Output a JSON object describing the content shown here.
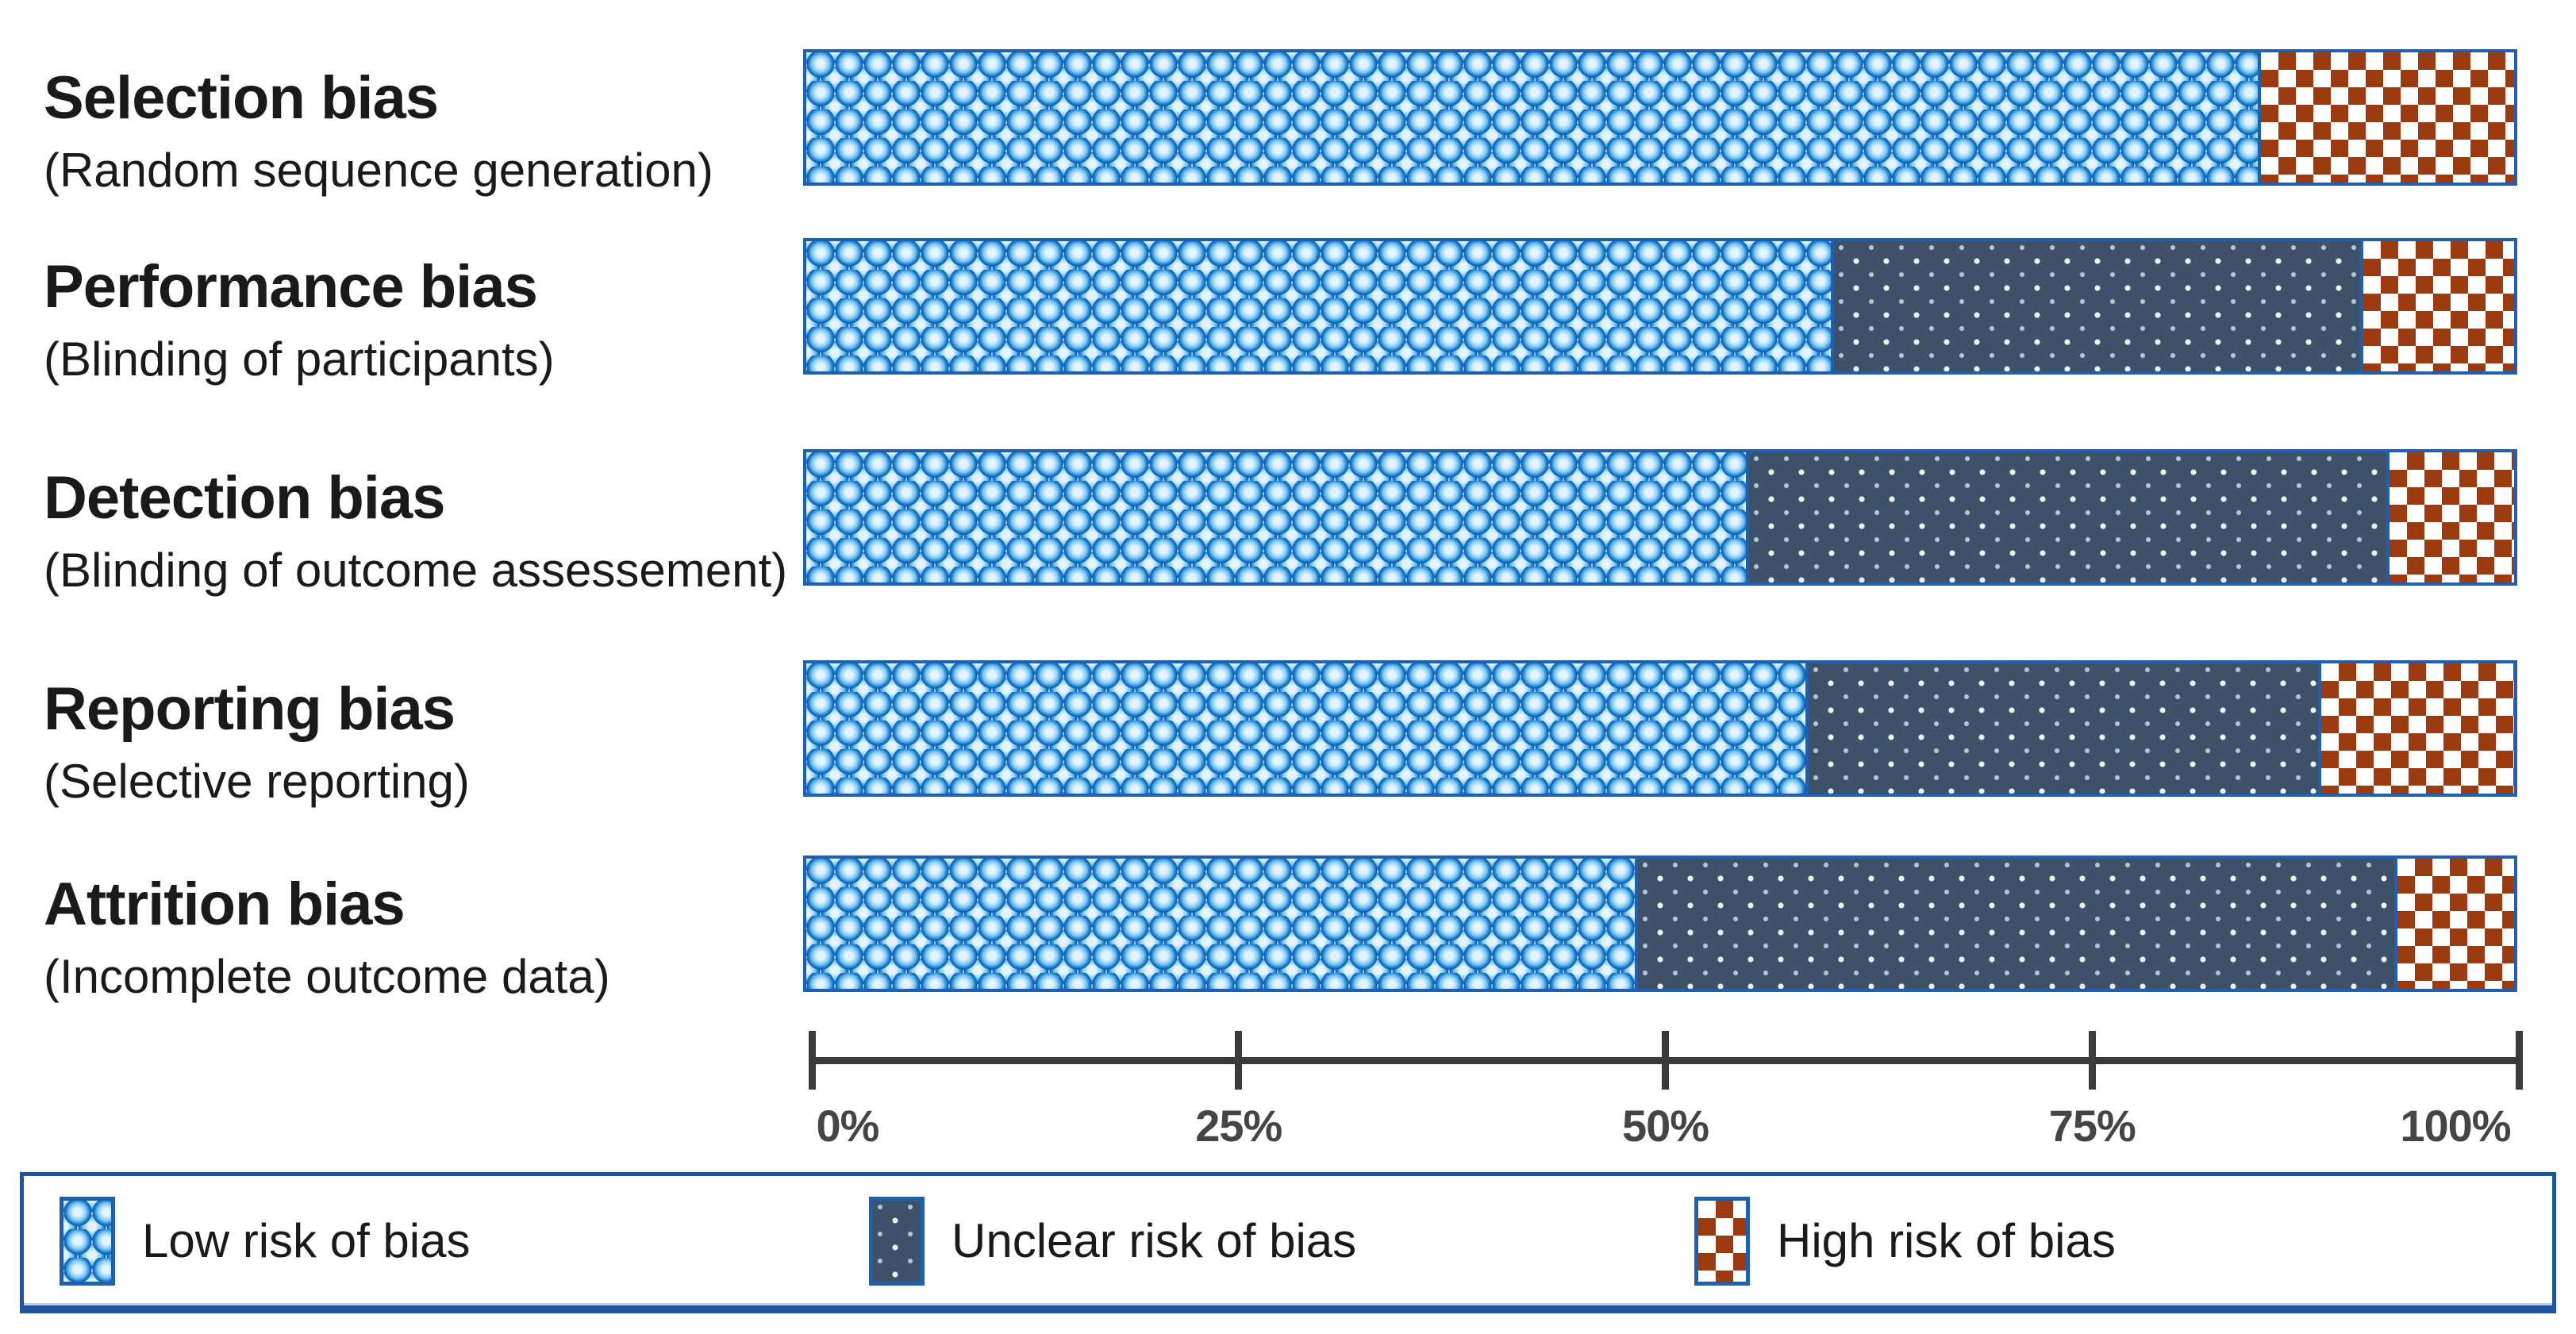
{
  "chart_data": {
    "type": "bar",
    "orientation": "horizontal",
    "stacked": true,
    "title": "",
    "categories": [
      {
        "title": "Selection bias",
        "subtitle": "(Random sequence generation)"
      },
      {
        "title": "Performance bias",
        "subtitle": "(Blinding of participants)"
      },
      {
        "title": "Detection bias",
        "subtitle": "(Blinding of outcome assessement)"
      },
      {
        "title": "Reporting bias",
        "subtitle": "(Selective reporting)"
      },
      {
        "title": "Attrition bias",
        "subtitle": "(Incomplete outcome data)"
      }
    ],
    "series": [
      {
        "name": "Low risk of bias",
        "key": "low",
        "values": [
          85,
          60,
          55,
          58.5,
          48.5
        ]
      },
      {
        "name": "Unclear risk of bias",
        "key": "unclear",
        "values": [
          0,
          31,
          37.5,
          30,
          44.5
        ]
      },
      {
        "name": "High risk of bias",
        "key": "high",
        "values": [
          15,
          9,
          7.5,
          11.5,
          7
        ]
      }
    ],
    "x_axis": {
      "min": 0,
      "max": 100,
      "tick_labels": [
        "0%",
        "25%",
        "50%",
        "75%",
        "100%"
      ]
    },
    "legend_position": "bottom",
    "grid": false,
    "colors": {
      "low_blue": "#1d7fd1",
      "unclear_slate": "#3d5268",
      "high_rust": "#9c3b0f",
      "bar_border_blue": "#1e5fae",
      "legend_border_blue": "#1d55a1",
      "axis_gray": "#3b3b3b"
    }
  },
  "legend": {
    "items": [
      {
        "label": "Low risk of bias"
      },
      {
        "label": "Unclear risk of bias"
      },
      {
        "label": "High risk of bias"
      }
    ]
  }
}
